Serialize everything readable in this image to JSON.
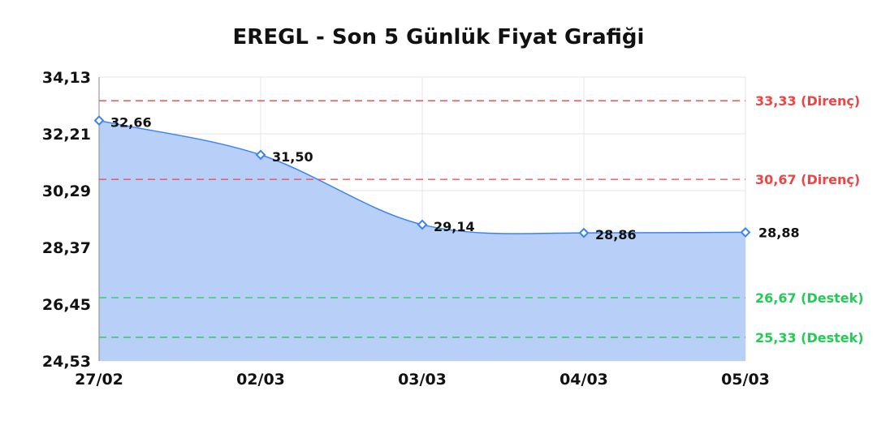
{
  "chart_data": {
    "type": "area",
    "title": "EREGL - Son 5 Günlük Fiyat Grafiği",
    "categories": [
      "27/02",
      "02/03",
      "03/03",
      "04/03",
      "05/03"
    ],
    "values": [
      32.66,
      31.5,
      29.14,
      28.86,
      28.88
    ],
    "value_labels": [
      "32,66",
      "31,50",
      "29,14",
      "28,86",
      "28,88"
    ],
    "ylim": [
      24.53,
      34.13
    ],
    "y_ticks": [
      24.53,
      26.45,
      28.37,
      30.29,
      32.21,
      34.13
    ],
    "y_tick_labels": [
      "24,53",
      "26,45",
      "28,37",
      "30,29",
      "32,21",
      "34,13"
    ],
    "grid": true,
    "reference_lines": [
      {
        "value": 33.33,
        "label": "33,33 (Direnç)",
        "color": "#ee4444"
      },
      {
        "value": 30.67,
        "label": "30,67 (Direnç)",
        "color": "#ee4444"
      },
      {
        "value": 26.67,
        "label": "26,67 (Destek)",
        "color": "#22cc55"
      },
      {
        "value": 25.33,
        "label": "25,33 (Destek)",
        "color": "#22cc55"
      }
    ],
    "line_color": "#3b82f6",
    "fill_color": "#b8cff8"
  }
}
